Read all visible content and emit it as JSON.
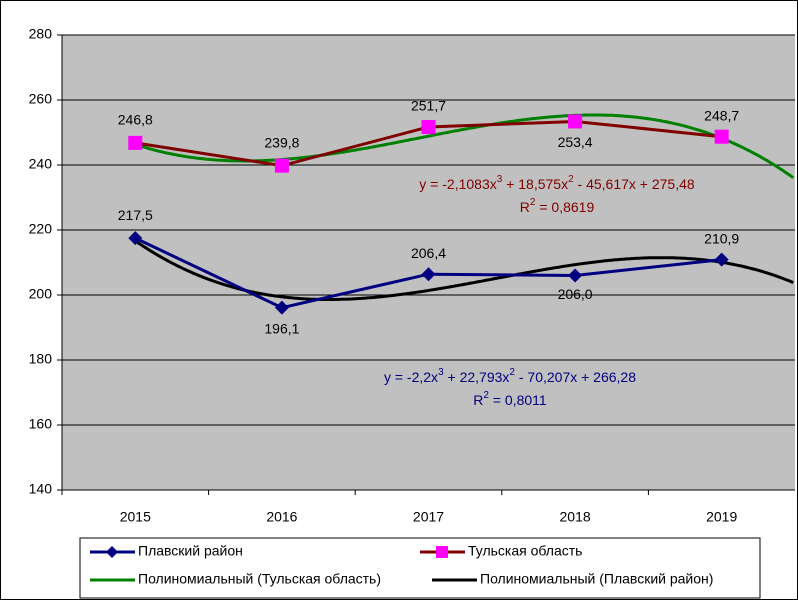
{
  "chart_data": {
    "type": "line",
    "categories": [
      "2015",
      "2016",
      "2017",
      "2018",
      "2019"
    ],
    "ylim": [
      140,
      280
    ],
    "yticks": [
      140,
      160,
      180,
      200,
      220,
      240,
      260,
      280
    ],
    "grid": true,
    "series": [
      {
        "name": "Плавский район",
        "color": "#000080",
        "marker": "diamond",
        "values": [
          217.5,
          196.1,
          206.4,
          206.0,
          210.9
        ],
        "value_labels": [
          "217,5",
          "196,1",
          "206,4",
          "206,0",
          "210,9"
        ]
      },
      {
        "name": "Тульская область",
        "color": "#800000",
        "marker_color": "#ff00ff",
        "marker": "square",
        "values": [
          246.8,
          239.8,
          251.7,
          253.4,
          248.7
        ],
        "value_labels": [
          "246,8",
          "239,8",
          "251,7",
          "253,4",
          "248,7"
        ]
      }
    ],
    "trendlines": [
      {
        "name": "Полиномиальный (Тульская область)",
        "color": "#008000",
        "coefficients": [
          -2.1083,
          18.575,
          -45.617,
          275.48
        ],
        "r2": 0.8619,
        "equation": [
          "y = -2,1083x",
          "3",
          " + 18,575x",
          "2",
          " - 45,617x + 275,48"
        ],
        "r2_label": [
          "R",
          "2",
          " = 0,8619"
        ],
        "label_color": "#800000"
      },
      {
        "name": "Полиномиальный (Плавский район)",
        "color": "#000000",
        "coefficients": [
          -2.2,
          22.793,
          -70.207,
          266.28
        ],
        "r2": 0.8011,
        "equation": [
          "y = -2,2x",
          "3",
          " + 22,793x",
          "2",
          " - 70,207x + 266,28"
        ],
        "r2_label": [
          "R",
          "2",
          " = 0,8011"
        ],
        "label_color": "#000080"
      }
    ]
  }
}
